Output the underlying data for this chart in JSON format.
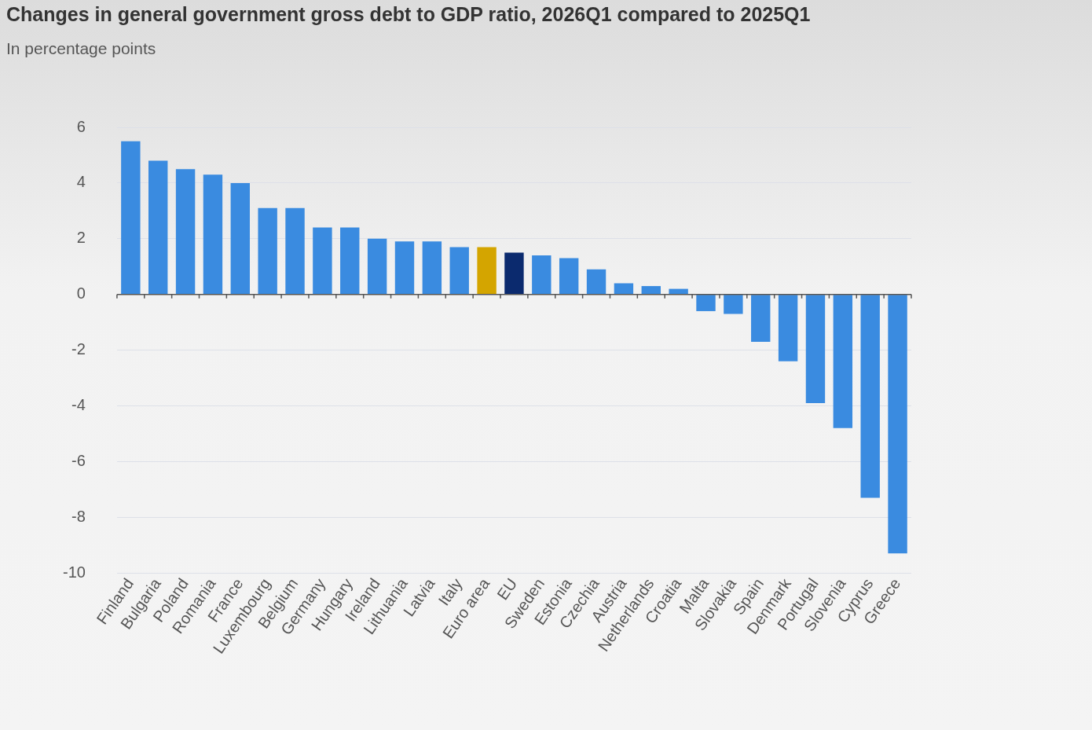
{
  "chart_data": {
    "type": "bar",
    "title": "Changes in general government gross debt to GDP ratio, 2026Q1 compared to 2025Q1",
    "subtitle": "In percentage points",
    "categories": [
      "Finland",
      "Bulgaria",
      "Poland",
      "Romania",
      "France",
      "Luxembourg",
      "Belgium",
      "Germany",
      "Hungary",
      "Ireland",
      "Lithuania",
      "Latvia",
      "Italy",
      "Euro area",
      "EU",
      "Sweden",
      "Estonia",
      "Czechia",
      "Austria",
      "Netherlands",
      "Croatia",
      "Malta",
      "Slovakia",
      "Spain",
      "Denmark",
      "Portugal",
      "Slovenia",
      "Cyprus",
      "Greece"
    ],
    "values": [
      5.5,
      4.8,
      4.5,
      4.3,
      4.0,
      3.1,
      3.1,
      2.4,
      2.4,
      2.0,
      1.9,
      1.9,
      1.7,
      1.7,
      1.5,
      1.4,
      1.3,
      0.9,
      0.4,
      0.3,
      0.2,
      -0.6,
      -0.7,
      -1.7,
      -2.4,
      -3.9,
      -4.8,
      -7.3,
      -9.3
    ],
    "colors": [
      "#3a8be0",
      "#3a8be0",
      "#3a8be0",
      "#3a8be0",
      "#3a8be0",
      "#3a8be0",
      "#3a8be0",
      "#3a8be0",
      "#3a8be0",
      "#3a8be0",
      "#3a8be0",
      "#3a8be0",
      "#3a8be0",
      "#d4a500",
      "#0b2a6e",
      "#3a8be0",
      "#3a8be0",
      "#3a8be0",
      "#3a8be0",
      "#3a8be0",
      "#3a8be0",
      "#3a8be0",
      "#3a8be0",
      "#3a8be0",
      "#3a8be0",
      "#3a8be0",
      "#3a8be0",
      "#3a8be0",
      "#3a8be0"
    ],
    "ylim": [
      -10,
      6
    ],
    "yticks": [
      -10,
      -8,
      -6,
      -4,
      -2,
      0,
      2,
      4,
      6
    ],
    "grid": "y",
    "legend": false
  }
}
